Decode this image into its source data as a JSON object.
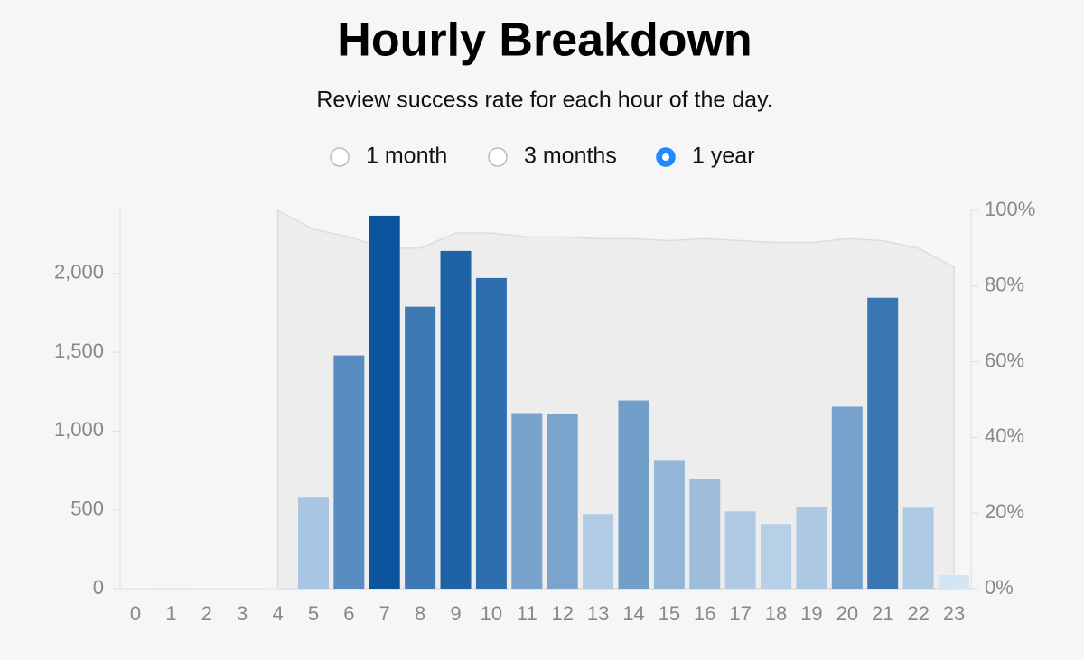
{
  "chart_data": {
    "type": "bar",
    "title": "Hourly Breakdown",
    "subtitle": "Review success rate for each hour of the day.",
    "controls": {
      "options": [
        "1 month",
        "3 months",
        "1 year"
      ],
      "selected": 2
    },
    "x": [
      0,
      1,
      2,
      3,
      4,
      5,
      6,
      7,
      8,
      9,
      10,
      11,
      12,
      13,
      14,
      15,
      16,
      17,
      18,
      19,
      20,
      21,
      22,
      23
    ],
    "series": [
      {
        "values": [
          0,
          5,
          0,
          0,
          3,
          577,
          1480,
          2366,
          1789,
          2143,
          1971,
          1114,
          1109,
          474,
          1194,
          811,
          697,
          491,
          411,
          520,
          1154,
          1846,
          514,
          86
        ],
        "color_scale": [
          "#dbe9f6",
          "#0b559f"
        ]
      },
      {
        "axis": "y2",
        "color": "#dddddd",
        "values": [
          null,
          null,
          null,
          null,
          100,
          95,
          93,
          90,
          90,
          94,
          94,
          93,
          93,
          92.5,
          92.5,
          92,
          92.5,
          92,
          91.5,
          91.5,
          92.5,
          92,
          90,
          85
        ]
      }
    ],
    "ylim": [
      0,
      2400
    ],
    "yticks": [
      0,
      500,
      {
        "value": 1000,
        "label": "1,000"
      },
      {
        "value": 1500,
        "label": "1,500"
      },
      {
        "value": 2000,
        "label": "2,000"
      }
    ],
    "y2lim": [
      0,
      100
    ],
    "y2ticks": [
      {
        "value": 0,
        "label": "0%"
      },
      {
        "value": 20,
        "label": "20%"
      },
      {
        "value": 40,
        "label": "40%"
      },
      {
        "value": 60,
        "label": "60%"
      },
      {
        "value": 80,
        "label": "80%"
      },
      {
        "value": 100,
        "label": "100%"
      }
    ]
  }
}
